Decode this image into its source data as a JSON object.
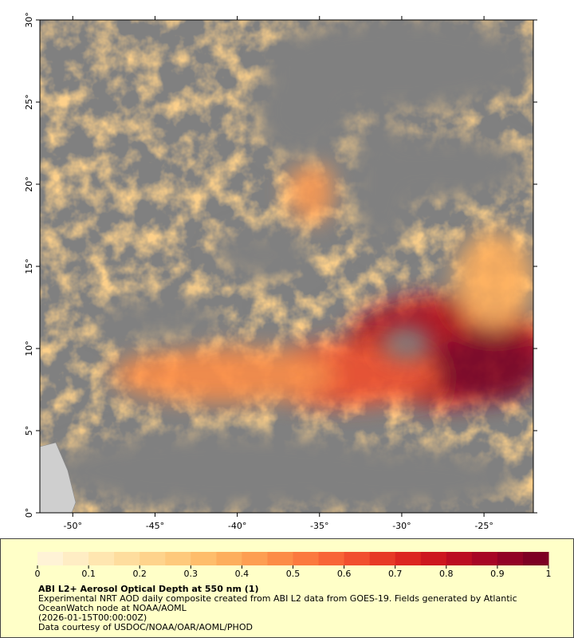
{
  "map": {
    "xlim": [
      -52,
      -22
    ],
    "ylim": [
      0,
      30
    ],
    "x_ticks": [
      {
        "value": -50,
        "label": "-50°"
      },
      {
        "value": -45,
        "label": "-45°"
      },
      {
        "value": -40,
        "label": "-40°"
      },
      {
        "value": -35,
        "label": "-35°"
      },
      {
        "value": -30,
        "label": "-30°"
      },
      {
        "value": -25,
        "label": "-25°"
      }
    ],
    "y_ticks": [
      {
        "value": 0,
        "label": "0°"
      },
      {
        "value": 5,
        "label": "5°"
      },
      {
        "value": 10,
        "label": "10°"
      },
      {
        "value": 15,
        "label": "15°"
      },
      {
        "value": 20,
        "label": "20°"
      },
      {
        "value": 25,
        "label": "25°"
      },
      {
        "value": 30,
        "label": "30°"
      }
    ]
  },
  "colorbar": {
    "title": "ABI L2+ Aerosol Optical Depth at 550 nm (1)",
    "lim": [
      0,
      1
    ],
    "ticks": [
      0,
      0.1,
      0.2,
      0.3,
      0.4,
      0.5,
      0.6,
      0.7,
      0.8,
      0.9,
      1
    ],
    "colors": [
      "#fff3d6",
      "#ffedc4",
      "#ffe6b0",
      "#fedd9e",
      "#fed38c",
      "#fec97c",
      "#febd6b",
      "#fdae5d",
      "#fd9e52",
      "#fc8c47",
      "#fb793f",
      "#f86537",
      "#f14f2f",
      "#e73a27",
      "#dc2621",
      "#cd171f",
      "#bb0d22",
      "#a70625",
      "#920226",
      "#7d0024"
    ]
  },
  "notes": [
    "Experimental NRT AOD daily composite created from ABI L2 data from GOES-19. Fields generated by Atlantic",
    "OceanWatch node at NOAA/AOML",
    "(2026-01-15T00:00:00Z)",
    "Data courtesy of USDOC/NOAA/OAR/AOML/PHOD"
  ]
}
